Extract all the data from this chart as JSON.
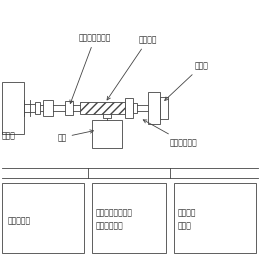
{
  "bg_color": "#f5f5f5",
  "line_color": "#444444",
  "labels": {
    "okuri_nejinut": "送りネジナット",
    "okuri_neji": "送りネジ",
    "gensokuki": "減速機",
    "shiryou": "試料",
    "pulse_motor": "パルスモータ",
    "load_cell": "ドセル",
    "cell_cont": "セルコント",
    "temp_controller_1": "温度コントローラ",
    "temp_controller_2": "プログラム式",
    "pulse_cont_1": "パルスモ",
    "pulse_cont_2": "ントロ"
  },
  "fontsize": 5.5
}
